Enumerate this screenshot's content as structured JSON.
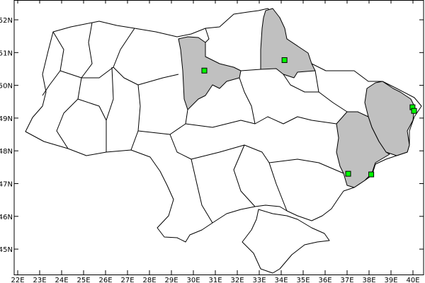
{
  "map": {
    "x_ticks": [
      "22E",
      "23E",
      "24E",
      "25E",
      "26E",
      "27E",
      "28E",
      "29E",
      "30E",
      "31E",
      "32E",
      "33E",
      "34E",
      "35E",
      "36E",
      "37E",
      "38E",
      "39E",
      "40E"
    ],
    "y_ticks": [
      "45N",
      "46N",
      "47N",
      "48N",
      "49N",
      "50N",
      "51N",
      "52N"
    ],
    "lon_range": [
      21.8,
      40.5
    ],
    "lat_range": [
      44.2,
      52.6
    ],
    "colors": {
      "background": "#ffffff",
      "region_fill": "#ffffff",
      "highlight_fill": "#c0c0c0",
      "border": "#000000",
      "marker": "#00ff00"
    },
    "markers": [
      {
        "lon": 30.5,
        "lat": 50.45
      },
      {
        "lon": 34.15,
        "lat": 50.77
      },
      {
        "lon": 39.98,
        "lat": 49.33
      },
      {
        "lon": 40.05,
        "lat": 49.22
      },
      {
        "lon": 37.05,
        "lat": 47.3
      },
      {
        "lon": 38.1,
        "lat": 47.28
      }
    ]
  }
}
